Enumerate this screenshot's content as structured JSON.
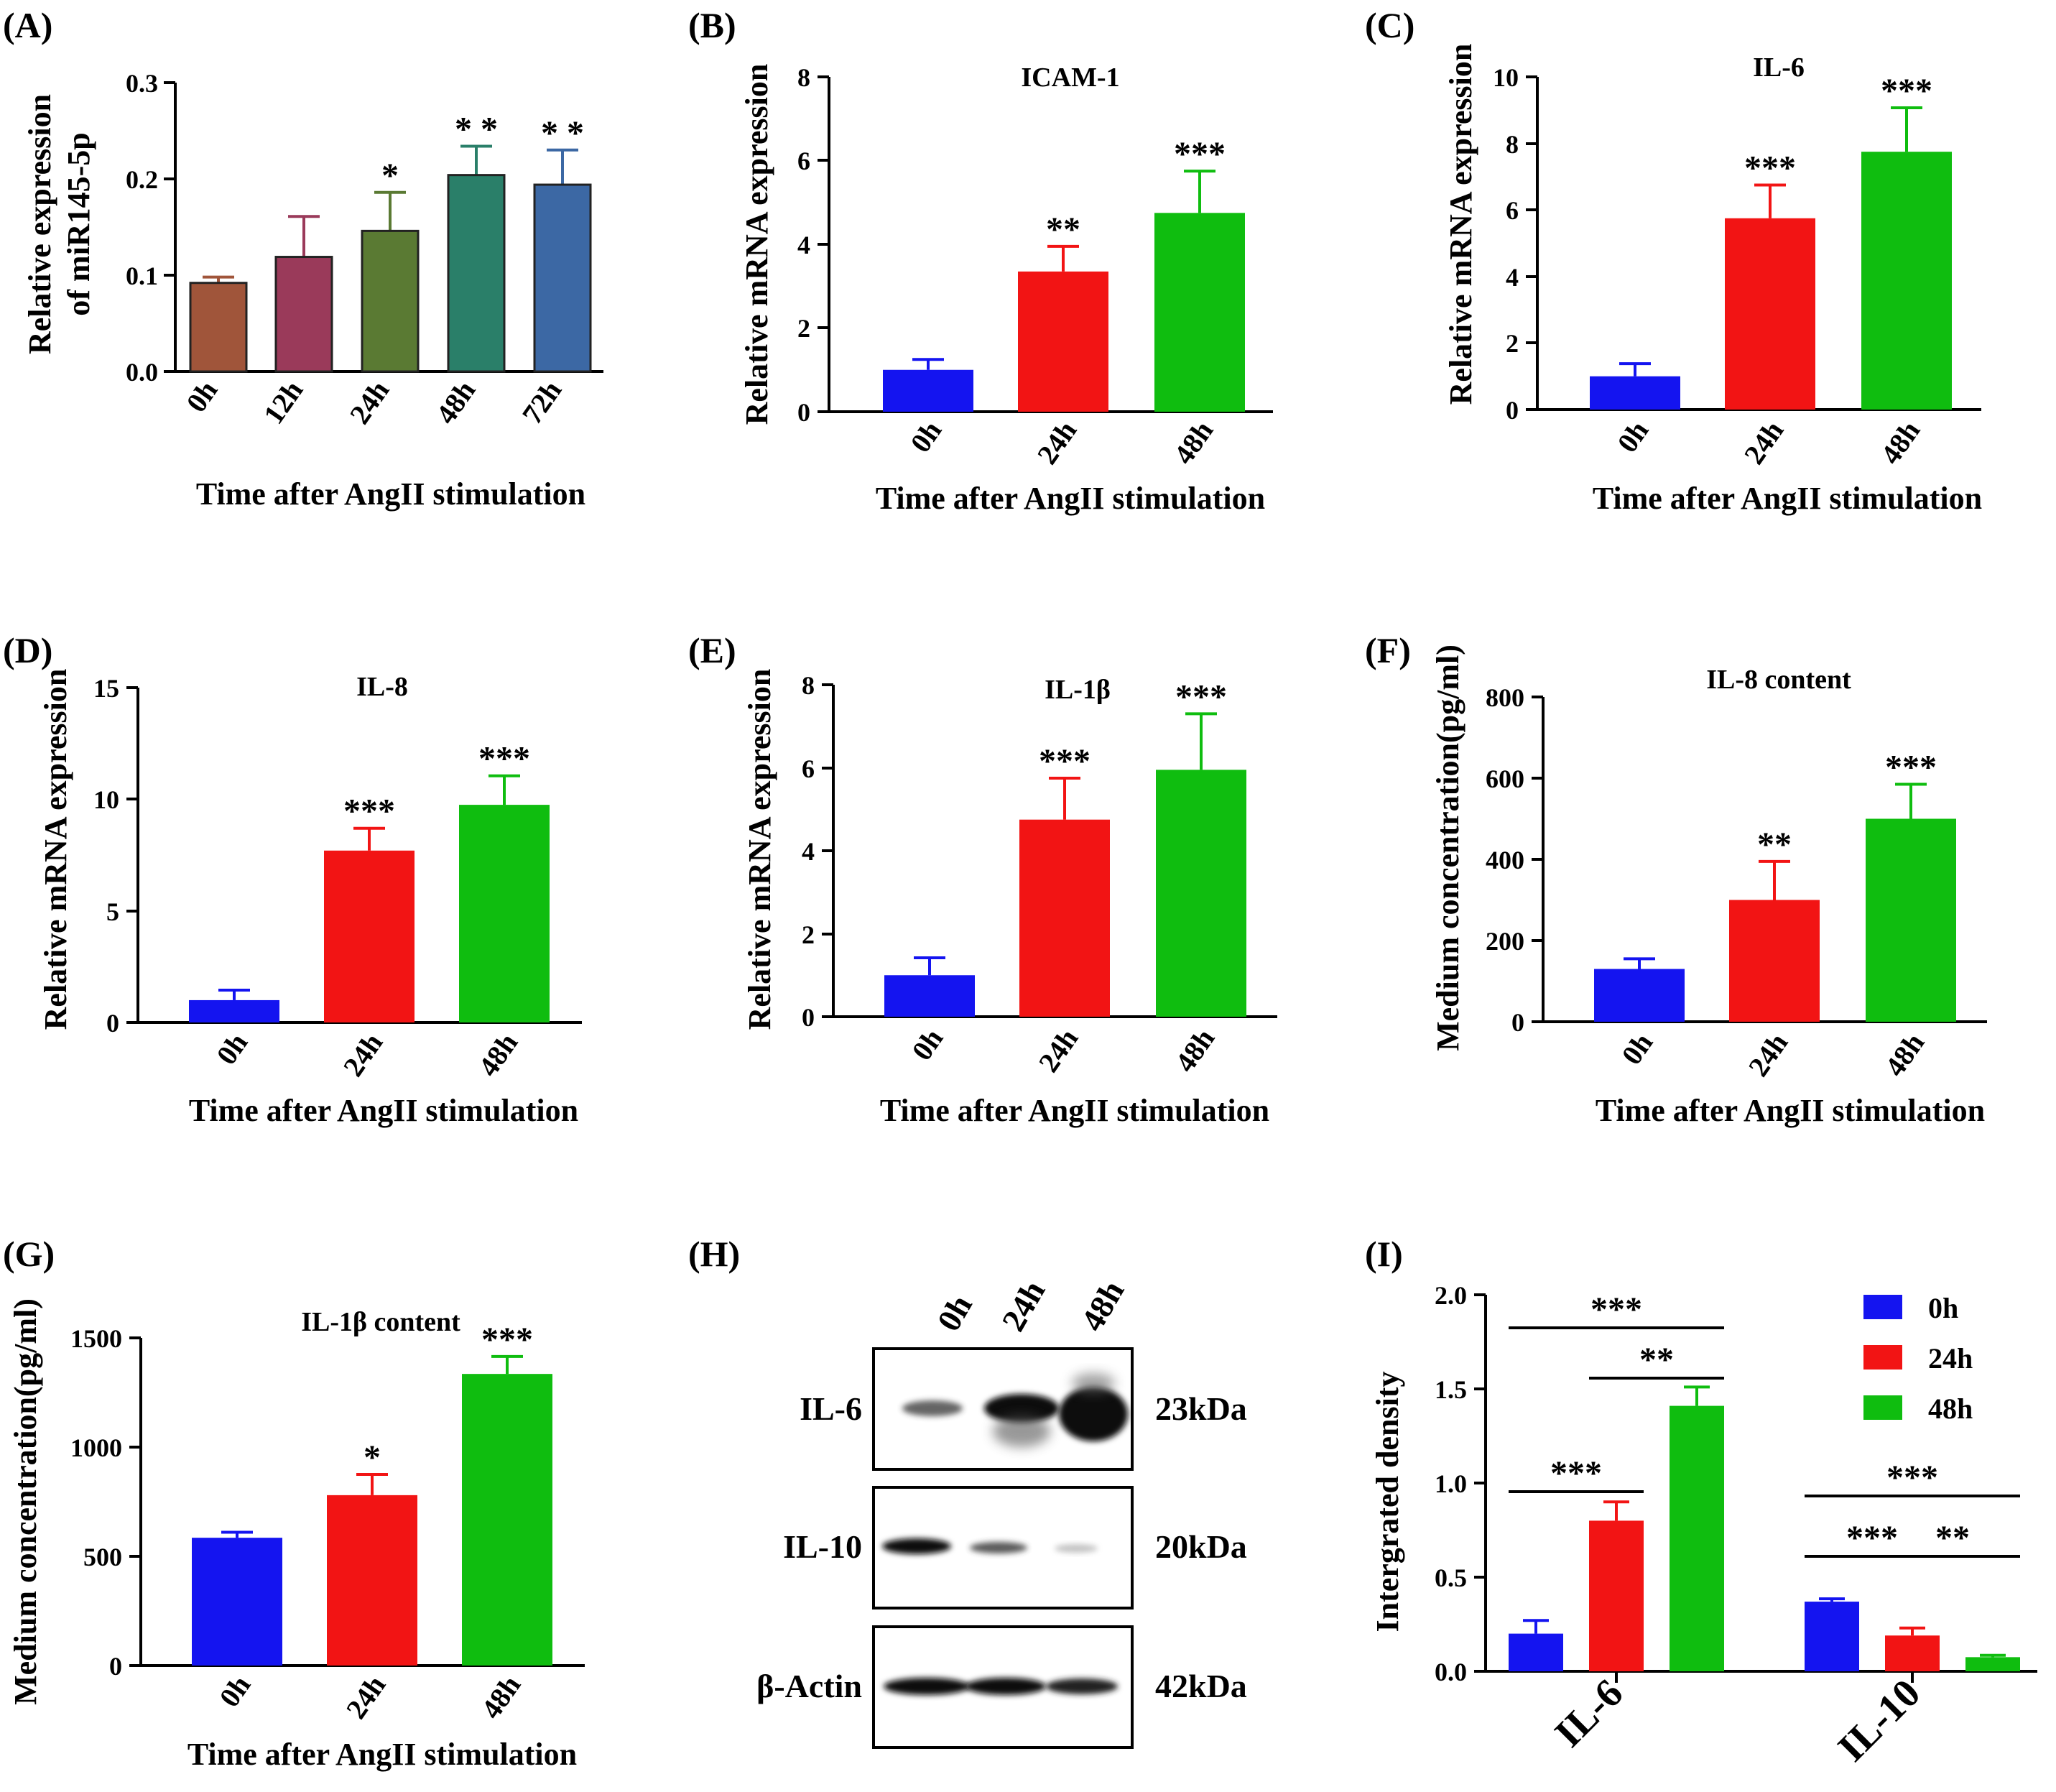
{
  "figure": {
    "colors": {
      "blue": "#1414f0",
      "red": "#f21414",
      "green": "#0fbd0f",
      "panelA": [
        "#a0553a",
        "#9a3a5a",
        "#5a7a33",
        "#2a7f69",
        "#3c68a4"
      ]
    },
    "panelA": {
      "letter": "(A)",
      "xlabel": "Time after AngII stimulation",
      "ylabel_line1": "Relative expression",
      "ylabel_line2": "of miR145-5p",
      "yticks": [
        "0.0",
        "0.1",
        "0.2",
        "0.3"
      ],
      "categories": [
        "0h",
        "12h",
        "24h",
        "48h",
        "72h"
      ]
    },
    "panelB": {
      "letter": "(B)",
      "title": "ICAM-1",
      "xlabel": "Time after AngII stimulation",
      "ylabel": "Relative mRNA expression",
      "yticks": [
        "0",
        "2",
        "4",
        "6",
        "8"
      ],
      "categories": [
        "0h",
        "24h",
        "48h"
      ]
    },
    "panelC": {
      "letter": "(C)",
      "title": "IL-6",
      "xlabel": "Time after AngII stimulation",
      "ylabel": "Relative mRNA expression",
      "yticks": [
        "0",
        "2",
        "4",
        "6",
        "8",
        "10"
      ],
      "categories": [
        "0h",
        "24h",
        "48h"
      ]
    },
    "panelD": {
      "letter": "(D)",
      "title": "IL-8",
      "xlabel": "Time after AngII stimulation",
      "ylabel": "Relative mRNA expression",
      "yticks": [
        "0",
        "5",
        "10",
        "15"
      ],
      "categories": [
        "0h",
        "24h",
        "48h"
      ]
    },
    "panelE": {
      "letter": "(E)",
      "title": "IL-1β",
      "xlabel": "Time after AngII stimulation",
      "ylabel": "Relative mRNA expression",
      "yticks": [
        "0",
        "2",
        "4",
        "6",
        "8"
      ],
      "categories": [
        "0h",
        "24h",
        "48h"
      ]
    },
    "panelF": {
      "letter": "(F)",
      "title": "IL-8 content",
      "xlabel": "Time after AngII stimulation",
      "ylabel": "Medium concentration(pg/ml)",
      "yticks": [
        "0",
        "200",
        "400",
        "600",
        "800"
      ],
      "categories": [
        "0h",
        "24h",
        "48h"
      ]
    },
    "panelG": {
      "letter": "(G)",
      "title": "IL-1β content",
      "xlabel": "Time after AngII stimulation",
      "ylabel": "Medium concentration(pg/ml)",
      "yticks": [
        "0",
        "500",
        "1000",
        "1500"
      ],
      "categories": [
        "0h",
        "24h",
        "48h"
      ]
    },
    "panelH": {
      "letter": "(H)",
      "lanes": [
        "0h",
        "24h",
        "48h"
      ],
      "rows": [
        {
          "name": "IL-6",
          "size": "23kDa"
        },
        {
          "name": "IL-10",
          "size": "20kDa"
        },
        {
          "name": "β-Actin",
          "size": "42kDa"
        }
      ]
    },
    "panelI": {
      "letter": "(I)",
      "ylabel": "Intergrated density",
      "yticks": [
        "0.0",
        "0.5",
        "1.0",
        "1.5",
        "2.0"
      ],
      "groups": [
        "IL-6",
        "IL-10"
      ],
      "legend": [
        "0h",
        "24h",
        "48h"
      ]
    }
  },
  "chart_data": [
    {
      "panel": "A",
      "type": "bar",
      "title": "",
      "xlabel": "Time after AngII stimulation",
      "ylabel": "Relative expression of miR145-5p",
      "categories": [
        "0h",
        "12h",
        "24h",
        "48h",
        "72h"
      ],
      "values": [
        0.092,
        0.119,
        0.146,
        0.204,
        0.194
      ],
      "errors": [
        0.006,
        0.042,
        0.04,
        0.03,
        0.036
      ],
      "significance": [
        "",
        "",
        "*",
        "* *",
        "* *"
      ],
      "ylim": [
        0,
        0.3
      ]
    },
    {
      "panel": "B",
      "type": "bar",
      "title": "ICAM-1",
      "xlabel": "Time after AngII stimulation",
      "ylabel": "Relative mRNA expression",
      "categories": [
        "0h",
        "24h",
        "48h"
      ],
      "values": [
        1.0,
        3.35,
        4.75
      ],
      "errors": [
        0.25,
        0.6,
        1.0
      ],
      "significance": [
        "",
        "**",
        "***"
      ],
      "ylim": [
        0,
        8
      ]
    },
    {
      "panel": "C",
      "type": "bar",
      "title": "IL-6",
      "xlabel": "Time after AngII stimulation",
      "ylabel": "Relative mRNA expression",
      "categories": [
        "0h",
        "24h",
        "48h"
      ],
      "values": [
        1.0,
        5.75,
        7.75
      ],
      "errors": [
        0.38,
        1.0,
        1.32
      ],
      "significance": [
        "",
        "***",
        "***"
      ],
      "ylim": [
        0,
        10
      ]
    },
    {
      "panel": "D",
      "type": "bar",
      "title": "IL-8",
      "xlabel": "Time after AngII stimulation",
      "ylabel": "Relative mRNA expression",
      "categories": [
        "0h",
        "24h",
        "48h"
      ],
      "values": [
        1.0,
        7.7,
        9.75
      ],
      "errors": [
        0.45,
        1.0,
        1.3
      ],
      "significance": [
        "",
        "***",
        "***"
      ],
      "ylim": [
        0,
        15
      ]
    },
    {
      "panel": "E",
      "type": "bar",
      "title": "IL-1β",
      "xlabel": "Time after AngII stimulation",
      "ylabel": "Relative mRNA expression",
      "categories": [
        "0h",
        "24h",
        "48h"
      ],
      "values": [
        1.0,
        4.75,
        5.95
      ],
      "errors": [
        0.42,
        1.0,
        1.35
      ],
      "significance": [
        "",
        "***",
        "***"
      ],
      "ylim": [
        0,
        8
      ]
    },
    {
      "panel": "F",
      "type": "bar",
      "title": "IL-8 content",
      "xlabel": "Time after AngII stimulation",
      "ylabel": "Medium concentration(pg/ml)",
      "categories": [
        "0h",
        "24h",
        "48h"
      ],
      "values": [
        130,
        300,
        500
      ],
      "errors": [
        25,
        95,
        85
      ],
      "significance": [
        "",
        "**",
        "***"
      ],
      "ylim": [
        0,
        800
      ]
    },
    {
      "panel": "G",
      "type": "bar",
      "title": "IL-1β content",
      "xlabel": "Time after AngII stimulation",
      "ylabel": "Medium concentration(pg/ml)",
      "categories": [
        "0h",
        "24h",
        "48h"
      ],
      "values": [
        585,
        780,
        1335
      ],
      "errors": [
        25,
        95,
        80
      ],
      "significance": [
        "",
        "*",
        "***"
      ],
      "ylim": [
        0,
        1500
      ]
    },
    {
      "panel": "I",
      "type": "bar",
      "title": "",
      "xlabel": "",
      "ylabel": "Intergrated density",
      "categories": [
        "IL-6",
        "IL-10"
      ],
      "series": [
        {
          "name": "0h",
          "values": [
            0.2,
            0.37
          ],
          "errors": [
            0.07,
            0.015
          ]
        },
        {
          "name": "24h",
          "values": [
            0.8,
            0.19
          ],
          "errors": [
            0.1,
            0.04
          ]
        },
        {
          "name": "48h",
          "values": [
            1.41,
            0.075
          ],
          "errors": [
            0.1,
            0.01
          ]
        }
      ],
      "comparisons": [
        {
          "group": 0,
          "from": 0,
          "to": 2,
          "label": "***"
        },
        {
          "group": 0,
          "from": 1,
          "to": 2,
          "label": "**"
        },
        {
          "group": 0,
          "from": 0,
          "to": 1,
          "label": "***"
        },
        {
          "group": 1,
          "from": 0,
          "to": 2,
          "label": "***"
        },
        {
          "group": 1,
          "from": 1,
          "to": 2,
          "label": "**"
        },
        {
          "group": 1,
          "from": 0,
          "to": 1,
          "label": "***"
        }
      ],
      "ylim": [
        0,
        2.0
      ]
    }
  ]
}
